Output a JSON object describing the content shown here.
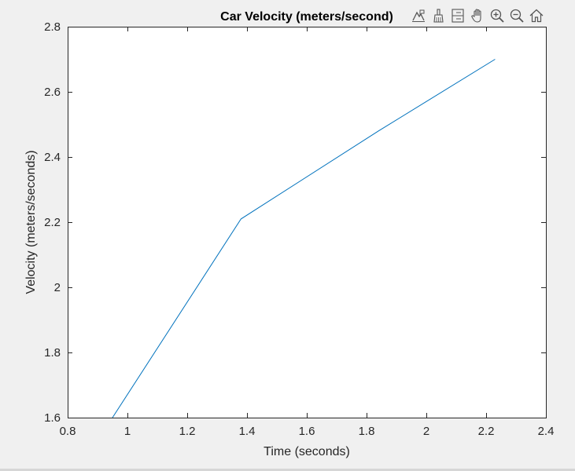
{
  "toolbar": {
    "icons": [
      "data-tips-icon",
      "brush-icon",
      "data-link-icon",
      "pan-icon",
      "zoom-in-icon",
      "zoom-out-icon",
      "home-icon"
    ]
  },
  "colors": {
    "line": "#0072bd",
    "axes": "#262626",
    "plot_background": "#ffffff",
    "figure_background": "#f0f0f0",
    "toolbar_icon": "#555555"
  },
  "chart_data": {
    "type": "line",
    "title": "Car Velocity (meters/second)",
    "xlabel": "Time (seconds)",
    "ylabel": "Velocity (meters/seconds)",
    "xlim": [
      0.8,
      2.4
    ],
    "ylim": [
      1.6,
      2.8
    ],
    "xticks": [
      0.8,
      1,
      1.2,
      1.4,
      1.6,
      1.8,
      2,
      2.2,
      2.4
    ],
    "xtick_labels": [
      "0.8",
      "1",
      "1.2",
      "1.4",
      "1.6",
      "1.8",
      "2",
      "2.2",
      "2.4"
    ],
    "yticks": [
      1.6,
      1.8,
      2,
      2.2,
      2.4,
      2.6,
      2.8
    ],
    "ytick_labels": [
      "1.6",
      "1.8",
      "2",
      "2.2",
      "2.4",
      "2.6",
      "2.8"
    ],
    "grid": false,
    "series": [
      {
        "x": [
          0.95,
          1.38,
          1.84,
          2.23
        ],
        "y": [
          1.6,
          2.21,
          2.48,
          2.7
        ]
      }
    ]
  }
}
